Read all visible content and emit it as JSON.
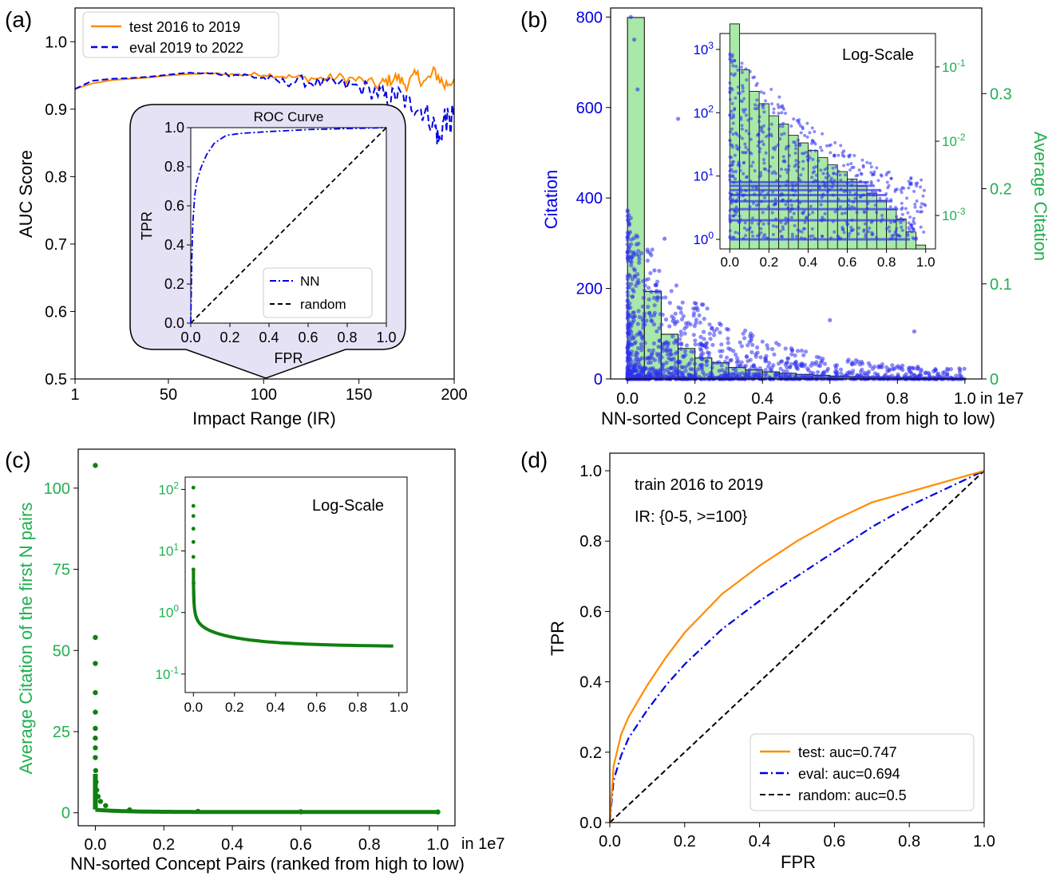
{
  "colors": {
    "orange": "#ff8c00",
    "blue": "#0000e6",
    "green": "#20b050",
    "dark_green": "#108010",
    "hist_fill": "#a8e8a8",
    "inset_bg": "#e4e2f4",
    "scatter_blue": "#3030f0"
  },
  "chart_data": [
    {
      "id": "a",
      "panel_label": "(a)",
      "type": "line",
      "title": "",
      "xlabel": "Impact Range (IR)",
      "ylabel": "AUC Score",
      "xlim": [
        1,
        200
      ],
      "ylim": [
        0.5,
        1.05
      ],
      "xticks": [
        "1",
        "50",
        "100",
        "150",
        "200"
      ],
      "yticks": [
        "0.5",
        "0.6",
        "0.7",
        "0.8",
        "0.9",
        "1.0"
      ],
      "series": [
        {
          "name": "test 2016 to 2019",
          "x": [
            1,
            10,
            20,
            30,
            40,
            50,
            60,
            70,
            80,
            90,
            100,
            110,
            120,
            130,
            140,
            150,
            160,
            165,
            170,
            175,
            180,
            185,
            190,
            195,
            200
          ],
          "y": [
            0.93,
            0.938,
            0.943,
            0.945,
            0.947,
            0.95,
            0.952,
            0.953,
            0.952,
            0.951,
            0.952,
            0.949,
            0.946,
            0.945,
            0.947,
            0.943,
            0.935,
            0.942,
            0.947,
            0.936,
            0.95,
            0.94,
            0.955,
            0.935,
            0.945
          ]
        },
        {
          "name": "eval 2019 to 2022",
          "x": [
            1,
            10,
            20,
            30,
            40,
            50,
            60,
            70,
            80,
            90,
            100,
            110,
            120,
            130,
            140,
            150,
            160,
            165,
            170,
            175,
            180,
            185,
            190,
            192,
            195,
            198,
            200
          ],
          "y": [
            0.93,
            0.942,
            0.945,
            0.946,
            0.948,
            0.951,
            0.954,
            0.953,
            0.952,
            0.95,
            0.946,
            0.94,
            0.942,
            0.938,
            0.936,
            0.933,
            0.925,
            0.915,
            0.922,
            0.91,
            0.905,
            0.895,
            0.875,
            0.85,
            0.89,
            0.875,
            0.905
          ]
        }
      ],
      "legend": "top-left",
      "inset": {
        "type": "line",
        "title": "ROC Curve",
        "xlabel": "FPR",
        "ylabel": "TPR",
        "xlim": [
          0,
          1
        ],
        "ylim": [
          0,
          1
        ],
        "xticks": [
          "0.0",
          "0.2",
          "0.4",
          "0.6",
          "0.8",
          "1.0"
        ],
        "yticks": [
          "0.0",
          "0.2",
          "0.4",
          "0.6",
          "0.8",
          "1.0"
        ],
        "series": [
          {
            "name": "NN",
            "x": [
              0,
              0.005,
              0.01,
              0.02,
              0.03,
              0.05,
              0.08,
              0.12,
              0.18,
              0.25,
              0.4,
              0.6,
              0.8,
              1.0
            ],
            "y": [
              0,
              0.3,
              0.5,
              0.65,
              0.72,
              0.79,
              0.86,
              0.92,
              0.96,
              0.97,
              0.98,
              0.99,
              0.995,
              1.0
            ]
          },
          {
            "name": "random",
            "x": [
              0,
              1
            ],
            "y": [
              0,
              1
            ]
          }
        ],
        "legend": "bottom-right"
      }
    },
    {
      "id": "b",
      "panel_label": "(b)",
      "type": "bar",
      "title": "",
      "xlabel": "NN-sorted Concept Pairs (ranked from high to low)",
      "x_offset_label": "in 1e7",
      "ylabel": "Citation",
      "ylabel_right": "Average Citation",
      "xlim": [
        -0.05,
        1.05
      ],
      "ylim": [
        0,
        820
      ],
      "ylim_right": [
        0,
        0.39
      ],
      "xticks": [
        "0.0",
        "0.2",
        "0.4",
        "0.6",
        "0.8",
        "1.0"
      ],
      "yticks": [
        "0",
        "200",
        "400",
        "600",
        "800"
      ],
      "yticks_right": [
        "0",
        "0.1",
        "0.2",
        "0.3"
      ],
      "categories": [
        "0.00",
        "0.05",
        "0.10",
        "0.15",
        "0.20",
        "0.25",
        "0.30",
        "0.35",
        "0.40",
        "0.45",
        "0.50",
        "0.55",
        "0.60",
        "0.65",
        "0.70",
        "0.75",
        "0.80",
        "0.85",
        "0.90",
        "0.95"
      ],
      "values": [
        0.38,
        0.092,
        0.047,
        0.032,
        0.022,
        0.017,
        0.012,
        0.0095,
        0.0075,
        0.006,
        0.0048,
        0.0039,
        0.0031,
        0.0025,
        0.002,
        0.0016,
        0.0012,
        0.0009,
        0.0006,
        0.0004
      ],
      "scatter_note": "blue scatter of per-pair citations, dense near 0 and decaying",
      "inset": {
        "type": "bar",
        "title": "Log-Scale",
        "xlim": [
          -0.05,
          1.05
        ],
        "xticks": [
          "0.0",
          "0.2",
          "0.4",
          "0.6",
          "0.8",
          "1.0"
        ],
        "yticks": [
          "10^0",
          "10^1",
          "10^2",
          "10^3"
        ],
        "yticks_right": [
          "10^-3",
          "10^-2",
          "10^-1"
        ]
      }
    },
    {
      "id": "c",
      "panel_label": "(c)",
      "type": "scatter",
      "title": "",
      "xlabel": "NN-sorted Concept Pairs (ranked from high to low)",
      "x_offset_label": "in 1e7",
      "ylabel": "Average Citation of the first N pairs",
      "xlim": [
        -0.05,
        1.05
      ],
      "ylim": [
        -4,
        112
      ],
      "xticks": [
        "0.0",
        "0.2",
        "0.4",
        "0.6",
        "0.8",
        "1.0"
      ],
      "yticks": [
        "0",
        "25",
        "50",
        "75",
        "100"
      ],
      "x": [
        0.0,
        0.0,
        0.0,
        0.0,
        0.0,
        0.0,
        0.0,
        0.0,
        0.0,
        0.001,
        0.002,
        0.004,
        0.008,
        0.015,
        0.03,
        0.1,
        0.3,
        0.6,
        1.0
      ],
      "y": [
        107,
        54,
        46,
        37,
        31,
        26,
        23,
        20,
        17,
        13,
        9.5,
        7,
        5,
        3.5,
        2.2,
        0.9,
        0.45,
        0.3,
        0.24
      ],
      "inset": {
        "type": "scatter",
        "title": "Log-Scale",
        "xticks": [
          "0.0",
          "0.2",
          "0.4",
          "0.6",
          "0.8",
          "1.0"
        ],
        "yticks": [
          "10^-1",
          "10^0",
          "10^1",
          "10^2"
        ]
      }
    },
    {
      "id": "d",
      "panel_label": "(d)",
      "type": "line",
      "title": "",
      "xlabel": "FPR",
      "ylabel": "TPR",
      "xlim": [
        0,
        1
      ],
      "ylim": [
        0,
        1.05
      ],
      "xticks": [
        "0.0",
        "0.2",
        "0.4",
        "0.6",
        "0.8",
        "1.0"
      ],
      "yticks": [
        "0.0",
        "0.2",
        "0.4",
        "0.6",
        "0.8",
        "1.0"
      ],
      "annotations": [
        "train 2016 to 2019",
        "IR: {0-5, >=100}"
      ],
      "series": [
        {
          "name": "test: auc=0.747",
          "x": [
            0,
            0.01,
            0.03,
            0.05,
            0.1,
            0.15,
            0.2,
            0.3,
            0.4,
            0.5,
            0.6,
            0.7,
            0.8,
            0.9,
            1.0
          ],
          "y": [
            0,
            0.16,
            0.25,
            0.3,
            0.39,
            0.47,
            0.54,
            0.65,
            0.73,
            0.8,
            0.86,
            0.91,
            0.94,
            0.97,
            1.0
          ]
        },
        {
          "name": "eval: auc=0.694",
          "x": [
            0,
            0.01,
            0.03,
            0.05,
            0.1,
            0.15,
            0.2,
            0.3,
            0.4,
            0.5,
            0.6,
            0.7,
            0.8,
            0.9,
            1.0
          ],
          "y": [
            0,
            0.12,
            0.19,
            0.24,
            0.32,
            0.39,
            0.45,
            0.55,
            0.63,
            0.7,
            0.77,
            0.84,
            0.9,
            0.95,
            1.0
          ]
        },
        {
          "name": "random: auc=0.5",
          "x": [
            0,
            1
          ],
          "y": [
            0,
            1
          ]
        }
      ],
      "legend": "bottom-right"
    }
  ]
}
